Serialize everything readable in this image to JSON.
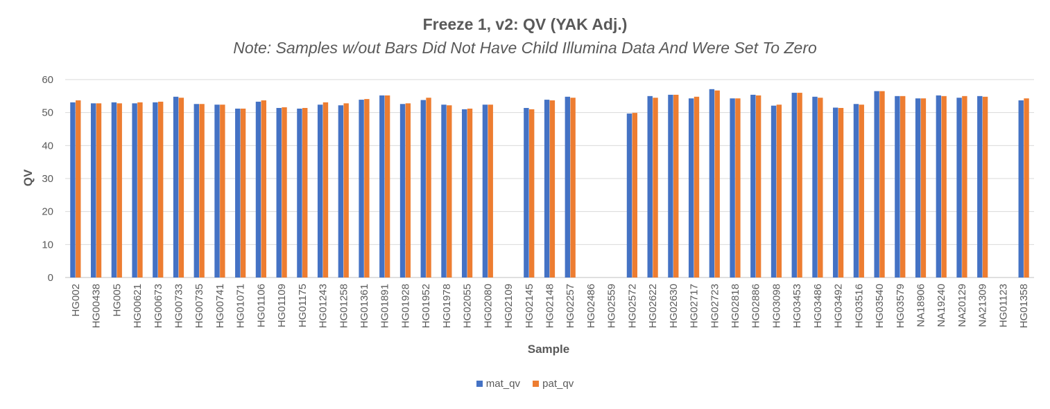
{
  "chart_data": {
    "type": "bar",
    "title": "Freeze 1, v2: QV (YAK Adj.)",
    "subtitle": "Note: Samples w/out Bars Did Not Have Child Illumina Data And Were Set To Zero",
    "xlabel": "Sample",
    "ylabel": "QV",
    "ylim": [
      0,
      60
    ],
    "yticks": [
      0,
      10,
      20,
      30,
      40,
      50,
      60
    ],
    "grid": true,
    "legend_position": "bottom",
    "categories": [
      "HG002",
      "HG00438",
      "HG005",
      "HG00621",
      "HG00673",
      "HG00733",
      "HG00735",
      "HG00741",
      "HG01071",
      "HG01106",
      "HG01109",
      "HG01175",
      "HG01243",
      "HG01258",
      "HG01361",
      "HG01891",
      "HG01928",
      "HG01952",
      "HG01978",
      "HG02055",
      "HG02080",
      "HG02109",
      "HG02145",
      "HG02148",
      "HG02257",
      "HG02486",
      "HG02559",
      "HG02572",
      "HG02622",
      "HG02630",
      "HG02717",
      "HG02723",
      "HG02818",
      "HG02886",
      "HG03098",
      "HG03453",
      "HG03486",
      "HG03492",
      "HG03516",
      "HG03540",
      "HG03579",
      "NA18906",
      "NA19240",
      "NA20129",
      "NA21309",
      "HG01123",
      "HG01358"
    ],
    "series": [
      {
        "name": "mat_qv",
        "color": "#4472C4",
        "values": [
          53.1,
          52.8,
          53.1,
          52.8,
          53.1,
          54.8,
          52.6,
          52.4,
          51.2,
          53.3,
          51.4,
          51.2,
          52.4,
          52.2,
          53.9,
          55.2,
          52.6,
          53.8,
          52.4,
          51.0,
          52.4,
          0,
          51.4,
          53.9,
          54.8,
          0,
          0,
          49.7,
          55.0,
          55.4,
          54.3,
          57.1,
          54.3,
          55.4,
          52.1,
          56.0,
          54.8,
          51.5,
          52.6,
          56.5,
          55.0,
          54.3,
          55.2,
          54.5,
          55.0,
          0,
          53.7
        ]
      },
      {
        "name": "pat_qv",
        "color": "#ED7D31",
        "values": [
          53.7,
          52.8,
          52.8,
          53.1,
          53.3,
          54.5,
          52.6,
          52.4,
          51.2,
          53.7,
          51.6,
          51.4,
          53.1,
          52.8,
          54.1,
          55.2,
          52.8,
          54.5,
          52.2,
          51.2,
          52.4,
          0,
          51.0,
          53.7,
          54.5,
          0,
          0,
          49.9,
          54.5,
          55.4,
          54.8,
          56.7,
          54.3,
          55.2,
          52.4,
          56.0,
          54.5,
          51.4,
          52.4,
          56.5,
          55.0,
          54.3,
          55.0,
          55.0,
          54.8,
          0,
          54.3
        ]
      }
    ]
  }
}
